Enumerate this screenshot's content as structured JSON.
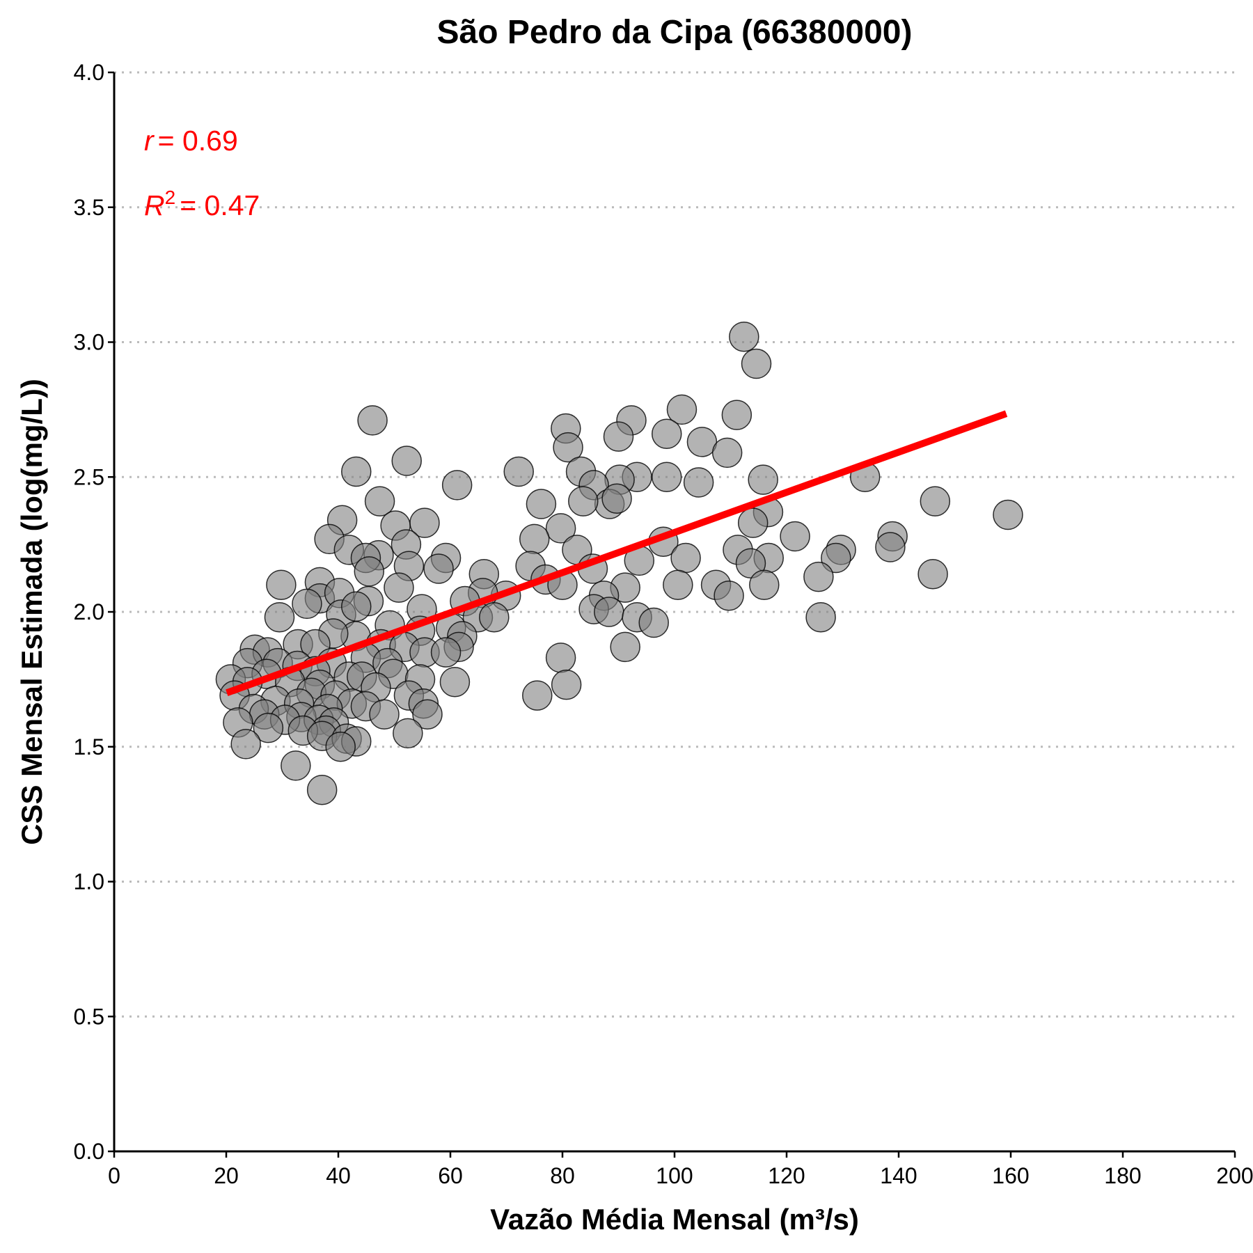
{
  "chart_data": {
    "type": "scatter",
    "title": "São Pedro da Cipa (66380000)",
    "x_label": "Vazão Média Mensal (m³/s)",
    "y_label": "CSS Mensal Estimada (log(mg/L))",
    "xlim": [
      0,
      200
    ],
    "xticks": [
      0,
      20,
      40,
      60,
      80,
      100,
      120,
      140,
      160,
      180,
      200
    ],
    "ylim": [
      0,
      4
    ],
    "yticks": [
      {
        "value": 0,
        "label": "0.0"
      },
      0.5,
      {
        "value": 1,
        "label": "1.0"
      },
      1.5,
      {
        "value": 2,
        "label": "2.0"
      },
      2.5,
      {
        "value": 3,
        "label": "3.0"
      },
      3.5,
      {
        "value": 4,
        "label": "4.0"
      }
    ],
    "grid": true,
    "color": "#808080",
    "x": [
      112.4,
      114.6,
      46.1,
      80.6,
      92.3,
      101.3,
      111.1,
      90.0,
      98.6,
      104.9,
      109.4,
      81.0,
      52.2,
      72.2,
      43.2,
      134.0,
      98.6,
      93.3,
      104.3,
      115.8,
      83.3,
      61.2,
      90.2,
      85.6,
      88.4,
      146.5,
      89.7,
      47.4,
      76.2,
      83.7,
      159.5,
      116.7,
      114.0,
      40.7,
      55.4,
      50.2,
      138.9,
      121.5,
      79.7,
      75.0,
      38.4,
      52.1,
      98.0,
      138.5,
      82.6,
      41.9,
      129.7,
      128.8,
      111.3,
      116.8,
      102.0,
      59.2,
      47.2,
      44.9,
      52.6,
      57.9,
      93.7,
      74.3,
      113.6,
      66.0,
      45.5,
      85.4,
      125.7,
      146.1,
      77.0,
      107.4,
      116.0,
      100.6,
      91.2,
      80.0,
      50.8,
      29.8,
      36.7,
      109.7,
      87.4,
      69.9,
      65.8,
      62.6,
      36.7,
      40.2,
      34.4,
      45.4,
      54.9,
      85.6,
      88.3,
      40.5,
      43.2,
      64.9,
      67.8,
      93.3,
      126.1,
      29.5,
      96.3,
      49.2,
      60.1,
      54.6,
      62.1,
      43.1,
      39.1,
      32.8,
      47.6,
      51.8,
      91.2,
      61.5,
      25.1,
      35.9,
      55.4,
      59.2,
      27.4,
      79.7,
      44.9,
      38.8,
      23.8,
      29.2,
      48.8,
      32.7,
      35.9,
      49.8,
      41.9,
      44.2,
      20.8,
      27.2,
      54.6,
      60.8,
      80.7,
      23.8,
      31.4,
      36.7,
      46.7,
      75.5,
      21.5,
      35.2,
      39.5,
      52.6,
      28.8,
      55.2,
      33.0,
      42.4,
      44.9,
      38.1,
      24.9,
      55.9,
      48.2,
      26.8,
      33.4,
      36.5,
      30.5,
      22.1,
      39.2,
      27.5,
      37.8,
      33.7,
      52.4,
      37.1,
      41.5,
      43.2,
      23.5,
      40.4,
      32.4,
      37.1
    ],
    "values": [
      3.02,
      2.92,
      2.71,
      2.68,
      2.71,
      2.75,
      2.73,
      2.65,
      2.66,
      2.63,
      2.59,
      2.61,
      2.56,
      2.52,
      2.52,
      2.5,
      2.5,
      2.5,
      2.48,
      2.49,
      2.52,
      2.47,
      2.49,
      2.47,
      2.4,
      2.41,
      2.42,
      2.41,
      2.4,
      2.41,
      2.36,
      2.37,
      2.33,
      2.34,
      2.33,
      2.32,
      2.28,
      2.28,
      2.31,
      2.27,
      2.27,
      2.25,
      2.26,
      2.24,
      2.23,
      2.23,
      2.23,
      2.2,
      2.23,
      2.2,
      2.2,
      2.2,
      2.21,
      2.2,
      2.17,
      2.16,
      2.19,
      2.17,
      2.18,
      2.14,
      2.15,
      2.16,
      2.13,
      2.14,
      2.12,
      2.1,
      2.1,
      2.1,
      2.09,
      2.1,
      2.09,
      2.1,
      2.11,
      2.06,
      2.06,
      2.06,
      2.07,
      2.04,
      2.05,
      2.07,
      2.03,
      2.04,
      2.01,
      2.01,
      2.0,
      1.99,
      2.02,
      1.98,
      1.98,
      1.98,
      1.98,
      1.98,
      1.96,
      1.95,
      1.94,
      1.93,
      1.91,
      1.91,
      1.92,
      1.88,
      1.88,
      1.87,
      1.87,
      1.87,
      1.86,
      1.88,
      1.85,
      1.85,
      1.85,
      1.83,
      1.83,
      1.81,
      1.81,
      1.81,
      1.81,
      1.8,
      1.78,
      1.77,
      1.76,
      1.76,
      1.75,
      1.77,
      1.75,
      1.74,
      1.73,
      1.74,
      1.74,
      1.73,
      1.72,
      1.69,
      1.69,
      1.7,
      1.69,
      1.69,
      1.67,
      1.66,
      1.66,
      1.66,
      1.65,
      1.64,
      1.64,
      1.62,
      1.62,
      1.62,
      1.61,
      1.6,
      1.6,
      1.59,
      1.59,
      1.57,
      1.56,
      1.56,
      1.55,
      1.54,
      1.53,
      1.52,
      1.51,
      1.5,
      1.43,
      1.34
    ],
    "fit_line": {
      "x": [
        20.1,
        159.2
      ],
      "values": [
        1.7,
        2.735
      ],
      "color": "#ff0000"
    },
    "annotations": [
      {
        "symbol": "r",
        "text": "= 0.69",
        "color": "#ff0000"
      },
      {
        "symbol": "R",
        "superscript": "2",
        "text": "= 0.47",
        "color": "#ff0000"
      }
    ]
  }
}
